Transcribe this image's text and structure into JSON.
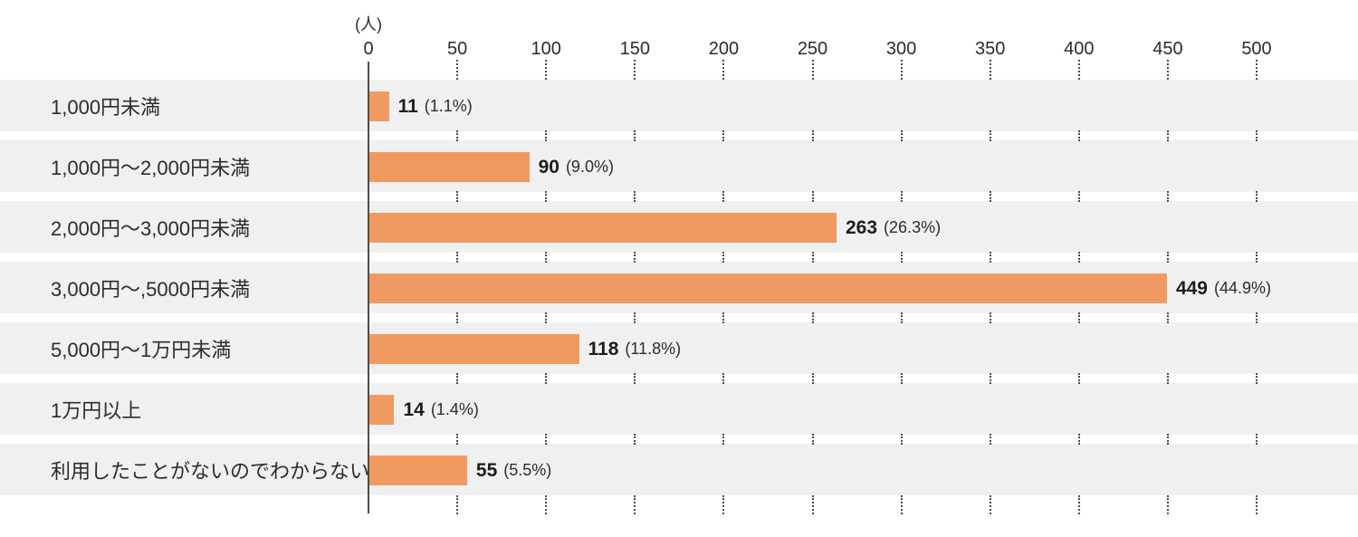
{
  "chart_data": {
    "type": "bar",
    "orientation": "horizontal",
    "unit_label": "(人)",
    "categories": [
      "1,000円未満",
      "1,000円〜2,000円未満",
      "2,000円〜3,000円未満",
      "3,000円〜,5000円未満",
      "5,000円〜1万円未満",
      "1万円以上",
      "利用したことがないのでわからない"
    ],
    "values": [
      11,
      90,
      263,
      449,
      118,
      14,
      55
    ],
    "value_labels": [
      "11",
      "90",
      "263",
      "449",
      "118",
      "14",
      "55"
    ],
    "percent_labels": [
      "(1.1%)",
      "(9.0%)",
      "(26.3%)",
      "(44.9%)",
      "(11.8%)",
      "(1.4%)",
      "(5.5%)"
    ],
    "xlim": [
      0,
      500
    ],
    "xticks": [
      0,
      50,
      100,
      150,
      200,
      250,
      300,
      350,
      400,
      450,
      500
    ],
    "grid": "dotted-vertical-in-row-gaps",
    "legend": "none",
    "colors": {
      "bar": "#f09a62",
      "row_band": "#f0f0f0",
      "axis_line": "#4d4d4d",
      "grid_dot": "#4a4a4a",
      "text": "#2f2b28"
    }
  }
}
